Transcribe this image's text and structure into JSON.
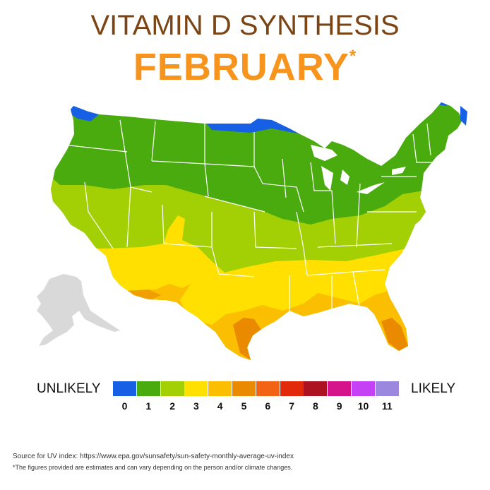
{
  "title": "VITAMIN D SYNTHESIS",
  "month": "FEBRUARY",
  "asterisk": "*",
  "legend": {
    "low_label": "UNLIKELY",
    "high_label": "LIKELY",
    "levels": [
      {
        "label": "0",
        "color": "#1760e6"
      },
      {
        "label": "1",
        "color": "#4aab0f"
      },
      {
        "label": "2",
        "color": "#a3cf05"
      },
      {
        "label": "3",
        "color": "#ffe000"
      },
      {
        "label": "4",
        "color": "#fbbe00"
      },
      {
        "label": "5",
        "color": "#e98a00"
      },
      {
        "label": "6",
        "color": "#f26315"
      },
      {
        "label": "7",
        "color": "#e22a0a"
      },
      {
        "label": "8",
        "color": "#ac1220"
      },
      {
        "label": "9",
        "color": "#d5138a"
      },
      {
        "label": "10",
        "color": "#c541f5"
      },
      {
        "label": "11",
        "color": "#9b87de"
      }
    ]
  },
  "map": {
    "alaska_color": "#d9d9d9",
    "border_color": "#ffffff"
  },
  "footer": {
    "source": "Source for UV index: https://www.epa.gov/sunsafety/sun-safety-monthly-average-uv-index",
    "note": "*The figures provided are estimates and can vary depending on the person and/or climate changes."
  }
}
